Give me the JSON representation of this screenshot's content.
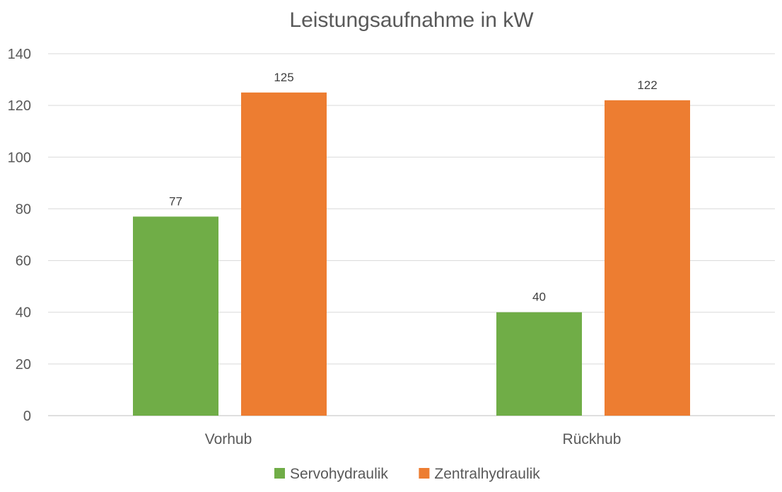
{
  "chart_data": {
    "type": "bar",
    "title": "Leistungsaufnahme in kW",
    "categories": [
      "Vorhub",
      "Rückhub"
    ],
    "series": [
      {
        "name": "Servohydraulik",
        "values": [
          77,
          40
        ],
        "color": "#70ad47"
      },
      {
        "name": "Zentralhydraulik",
        "values": [
          125,
          122
        ],
        "color": "#ed7d31"
      }
    ],
    "ylim": [
      0,
      140
    ],
    "yticks": [
      0,
      20,
      40,
      60,
      80,
      100,
      120,
      140
    ],
    "grid": true,
    "legend": "bottom",
    "data_labels": true
  }
}
